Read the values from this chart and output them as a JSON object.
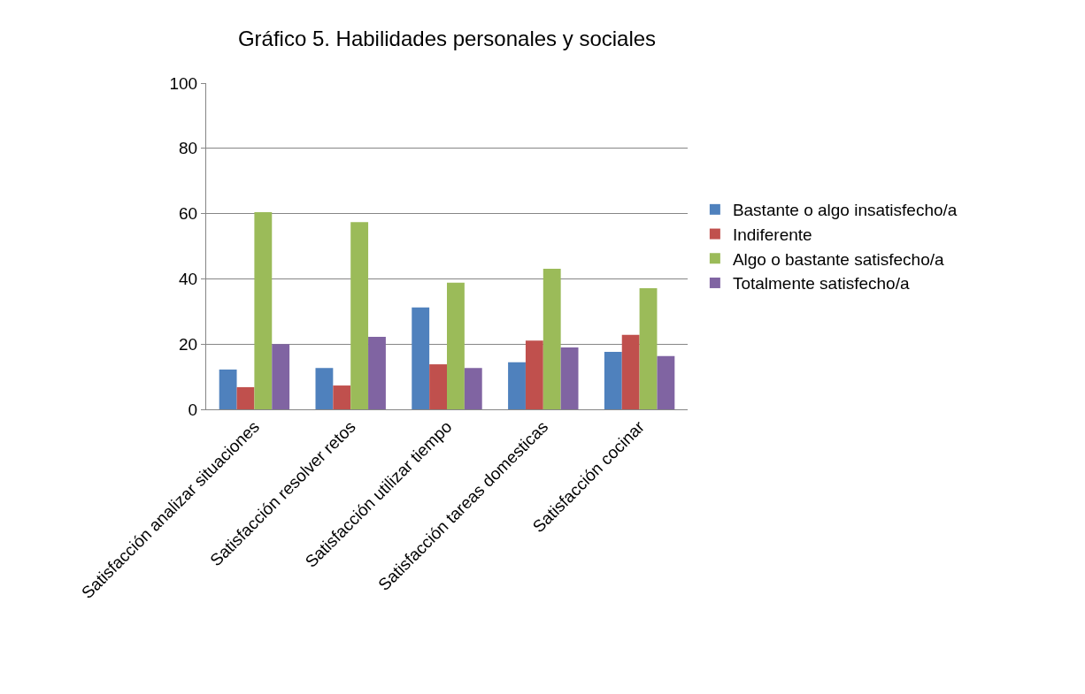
{
  "chart_data": {
    "type": "bar",
    "title": "Gráfico 5. Habilidades personales y sociales",
    "categories": [
      "Satisfacción analizar situaciones",
      "Satisfacción resolver retos",
      "Satisfacción utilizar tiempo",
      "Satisfacción tareas domesticas",
      "Satisfacción cocinar"
    ],
    "series": [
      {
        "name": "Bastante o algo insatisfecho/a",
        "color": "#4f81bd",
        "values": [
          12.2,
          12.7,
          31.2,
          14.4,
          17.6
        ]
      },
      {
        "name": "Indiferente",
        "color": "#c0504d",
        "values": [
          6.8,
          7.3,
          13.8,
          21.1,
          22.8
        ]
      },
      {
        "name": "Algo o bastante satisfecho/a",
        "color": "#9bbb59",
        "values": [
          60.4,
          57.4,
          38.8,
          43.1,
          37.1
        ]
      },
      {
        "name": "Totalmente satisfecho/a",
        "color": "#8064a2",
        "values": [
          20,
          22.2,
          12.7,
          19,
          16.3
        ]
      }
    ],
    "ylim": [
      0,
      100
    ],
    "yticks": [
      0,
      20,
      40,
      60,
      80,
      100
    ],
    "grid": "y",
    "legend": "right"
  }
}
